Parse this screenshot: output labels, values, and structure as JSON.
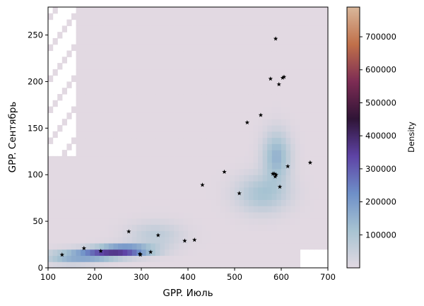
{
  "chart_data": {
    "type": "heatmap",
    "title": "",
    "xlabel": "GPP. Июль",
    "ylabel": "GPP. Сентябрь",
    "xlim": [
      100,
      700
    ],
    "ylim": [
      0,
      280
    ],
    "x_ticks": [
      100,
      200,
      300,
      400,
      500,
      600,
      700
    ],
    "y_ticks": [
      0,
      50,
      100,
      150,
      200,
      250
    ],
    "colorbar": {
      "label": "Density",
      "range": [
        0,
        790000
      ],
      "ticks": [
        100000,
        200000,
        300000,
        400000,
        500000,
        600000,
        700000
      ],
      "colormap": "twilight",
      "colors": [
        "#e2d9e2",
        "#a7c3d2",
        "#6e8fc8",
        "#5e43a5",
        "#2f1436",
        "#7d2c54",
        "#c0704a",
        "#d9b79b"
      ]
    },
    "background_density_color": "#e2d9e2",
    "density_hotspots": [
      {
        "x": 265,
        "y": 19,
        "peak": 330000
      },
      {
        "x": 210,
        "y": 15,
        "peak": 200000
      },
      {
        "x": 150,
        "y": 12,
        "peak": 150000
      },
      {
        "x": 590,
        "y": 120,
        "peak": 150000
      },
      {
        "x": 560,
        "y": 80,
        "peak": 110000
      },
      {
        "x": 330,
        "y": 35,
        "peak": 70000
      }
    ],
    "series": [
      {
        "marker": "star",
        "color": "#000000",
        "points": [
          [
            130,
            14
          ],
          [
            177,
            21
          ],
          [
            213,
            18
          ],
          [
            273,
            39
          ],
          [
            297,
            15
          ],
          [
            298,
            14
          ],
          [
            320,
            17
          ],
          [
            336,
            35
          ],
          [
            393,
            29
          ],
          [
            414,
            30
          ],
          [
            431,
            89
          ],
          [
            478,
            103
          ],
          [
            510,
            80
          ],
          [
            527,
            156
          ],
          [
            556,
            164
          ],
          [
            577,
            203
          ],
          [
            582,
            101
          ],
          [
            585,
            101
          ],
          [
            587,
            98
          ],
          [
            588,
            246
          ],
          [
            589,
            100
          ],
          [
            595,
            197
          ],
          [
            597,
            87
          ],
          [
            603,
            204
          ],
          [
            606,
            205
          ],
          [
            614,
            109
          ],
          [
            662,
            113
          ]
        ]
      }
    ]
  }
}
